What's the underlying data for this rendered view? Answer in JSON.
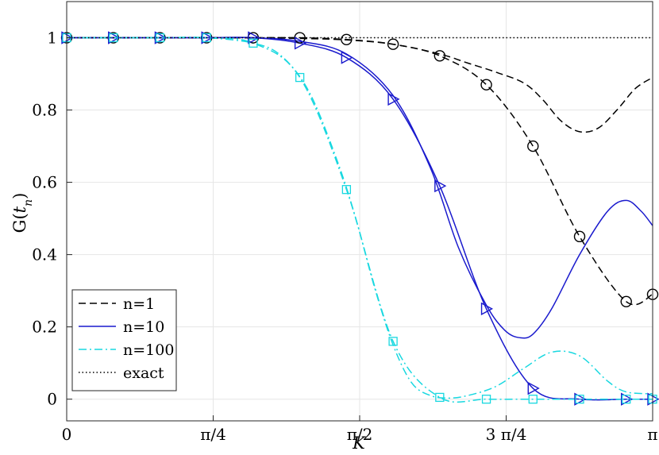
{
  "chart_data": {
    "type": "line",
    "xlabel": "K",
    "ylabel": "G(t_n)",
    "ylabel_display": {
      "base": "G(",
      "var": "t",
      "sub": "n",
      "close": ")"
    },
    "xlim": [
      0,
      3.14159
    ],
    "ylim": [
      -0.06,
      1.1
    ],
    "grid": true,
    "legend_position": "bottom-left",
    "xticks": [
      {
        "value": 0,
        "label": "0"
      },
      {
        "value": 0.7854,
        "label": "π/4"
      },
      {
        "value": 1.5708,
        "label": "π/2"
      },
      {
        "value": 2.3562,
        "label": "3 π/4"
      },
      {
        "value": 3.14159,
        "label": "π"
      }
    ],
    "yticks": [
      {
        "value": 0,
        "label": "0"
      },
      {
        "value": 0.2,
        "label": "0.2"
      },
      {
        "value": 0.4,
        "label": "0.4"
      },
      {
        "value": 0.6,
        "label": "0.6"
      },
      {
        "value": 0.8,
        "label": "0.8"
      },
      {
        "value": 1,
        "label": "1"
      }
    ],
    "legend": [
      "n=1",
      "n=10",
      "n=100",
      "exact"
    ],
    "series": [
      {
        "name": "n=1",
        "color": "#000000",
        "dash": "dashed",
        "kind": "approx",
        "x": [
          0,
          0.25,
          0.5,
          0.75,
          1.0,
          1.25,
          1.5,
          1.75,
          2.0,
          2.15,
          2.3,
          2.45,
          2.55,
          2.65,
          2.75,
          2.85,
          2.95,
          3.05,
          3.14159
        ],
        "y": [
          1.0,
          1.0,
          1.0,
          1.0,
          1.0,
          0.998,
          0.994,
          0.982,
          0.955,
          0.93,
          0.905,
          0.875,
          0.83,
          0.77,
          0.74,
          0.75,
          0.8,
          0.86,
          0.89
        ]
      },
      {
        "name": "n=1",
        "color": "#000000",
        "dash": "dashed",
        "kind": "markers",
        "marker": "circle",
        "x": [
          0,
          0.25,
          0.5,
          0.75,
          1.0,
          1.25,
          1.5,
          1.75,
          2.0,
          2.25,
          2.5,
          2.75,
          3.0,
          3.14159
        ],
        "y": [
          1.0,
          1.0,
          1.0,
          1.0,
          1.0,
          1.0,
          0.995,
          0.982,
          0.95,
          0.87,
          0.7,
          0.45,
          0.27,
          0.29
        ]
      },
      {
        "name": "n=10",
        "color": "#1a1acd",
        "dash": "solid",
        "kind": "approx",
        "x": [
          0,
          0.25,
          0.5,
          0.75,
          1.0,
          1.25,
          1.5,
          1.75,
          1.95,
          2.1,
          2.25,
          2.35,
          2.43,
          2.5,
          2.6,
          2.75,
          2.9,
          3.0,
          3.08,
          3.14159
        ],
        "y": [
          1.0,
          1.0,
          1.0,
          1.0,
          1.0,
          0.99,
          0.955,
          0.84,
          0.64,
          0.42,
          0.26,
          0.19,
          0.17,
          0.18,
          0.25,
          0.4,
          0.52,
          0.55,
          0.52,
          0.48
        ]
      },
      {
        "name": "n=10",
        "color": "#1a1acd",
        "dash": "solid",
        "kind": "markers",
        "marker": "triangle",
        "x": [
          0,
          0.25,
          0.5,
          0.75,
          1.0,
          1.25,
          1.5,
          1.75,
          2.0,
          2.25,
          2.5,
          2.75,
          3.0,
          3.14159
        ],
        "y": [
          1.0,
          1.0,
          1.0,
          1.0,
          1.0,
          0.985,
          0.945,
          0.83,
          0.59,
          0.25,
          0.03,
          0.0,
          0.0,
          0.0
        ]
      },
      {
        "name": "n=100",
        "color": "#18d8e0",
        "dash": "dashdot",
        "kind": "approx",
        "x": [
          0,
          0.25,
          0.5,
          0.75,
          1.0,
          1.15,
          1.3,
          1.45,
          1.55,
          1.65,
          1.75,
          1.85,
          1.95,
          2.05,
          2.15,
          2.3,
          2.45,
          2.6,
          2.75,
          2.9,
          3.0,
          3.14159
        ],
        "y": [
          1.0,
          1.0,
          1.0,
          1.0,
          0.985,
          0.95,
          0.85,
          0.66,
          0.5,
          0.31,
          0.15,
          0.045,
          0.01,
          0.003,
          0.01,
          0.035,
          0.085,
          0.13,
          0.12,
          0.05,
          0.02,
          0.015
        ]
      },
      {
        "name": "n=100",
        "color": "#18d8e0",
        "dash": "dashdot",
        "kind": "markers",
        "marker": "square",
        "x": [
          0,
          0.25,
          0.5,
          0.75,
          1.0,
          1.25,
          1.5,
          1.75,
          2.0,
          2.25,
          2.5,
          2.75,
          3.0,
          3.14159
        ],
        "y": [
          1.0,
          1.0,
          1.0,
          1.0,
          0.985,
          0.89,
          0.58,
          0.16,
          0.005,
          0.0,
          0.0,
          0.0,
          0.0,
          0.0
        ]
      },
      {
        "name": "exact",
        "color": "#000000",
        "dash": "dotted",
        "kind": "exact",
        "x": [
          0,
          3.14159
        ],
        "y": [
          1.0,
          1.0
        ]
      }
    ]
  }
}
